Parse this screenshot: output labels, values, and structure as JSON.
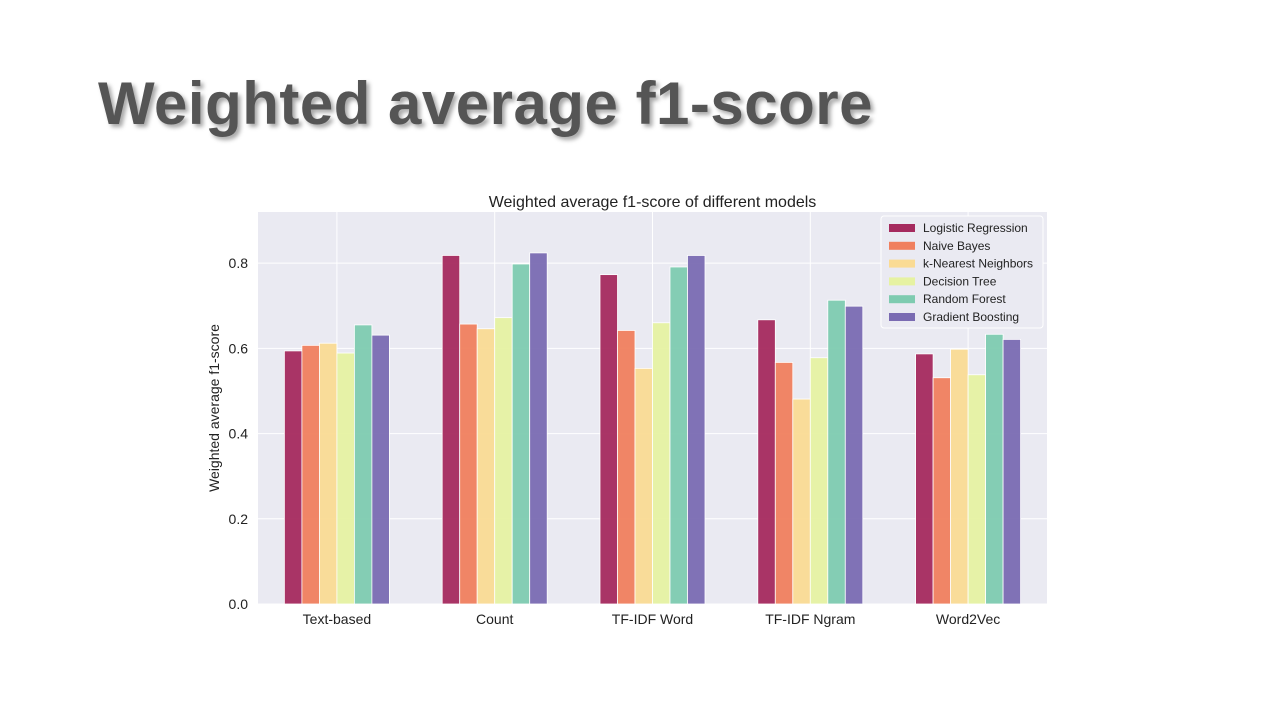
{
  "slide": {
    "title": "Weighted average f1-score"
  },
  "chart_data": {
    "type": "bar",
    "title": "Weighted average f1-score of different models",
    "xlabel": "",
    "ylabel": "Weighted average f1-score",
    "ylim": [
      0,
      0.92
    ],
    "yticks": [
      "0.0",
      "0.2",
      "0.4",
      "0.6",
      "0.8"
    ],
    "grid": true,
    "legend_position": "top-right",
    "categories": [
      "Text-based",
      "Count",
      "TF-IDF Word",
      "TF-IDF Ngram",
      "Word2Vec"
    ],
    "series": [
      {
        "name": "Logistic Regression",
        "color": "#a52a5e",
        "values": [
          0.594,
          0.818,
          0.773,
          0.667,
          0.587
        ]
      },
      {
        "name": "Naive Bayes",
        "color": "#f07f5e",
        "values": [
          0.607,
          0.657,
          0.642,
          0.567,
          0.531
        ]
      },
      {
        "name": "k-Nearest Neighbors",
        "color": "#fadb94",
        "values": [
          0.612,
          0.646,
          0.553,
          0.481,
          0.598
        ]
      },
      {
        "name": "Decision Tree",
        "color": "#e6f2a2",
        "values": [
          0.589,
          0.672,
          0.66,
          0.578,
          0.538
        ]
      },
      {
        "name": "Random Forest",
        "color": "#7ecbb0",
        "values": [
          0.655,
          0.798,
          0.791,
          0.713,
          0.633
        ]
      },
      {
        "name": "Gradient Boosting",
        "color": "#7a6bb2",
        "values": [
          0.631,
          0.824,
          0.818,
          0.699,
          0.621
        ]
      }
    ]
  }
}
